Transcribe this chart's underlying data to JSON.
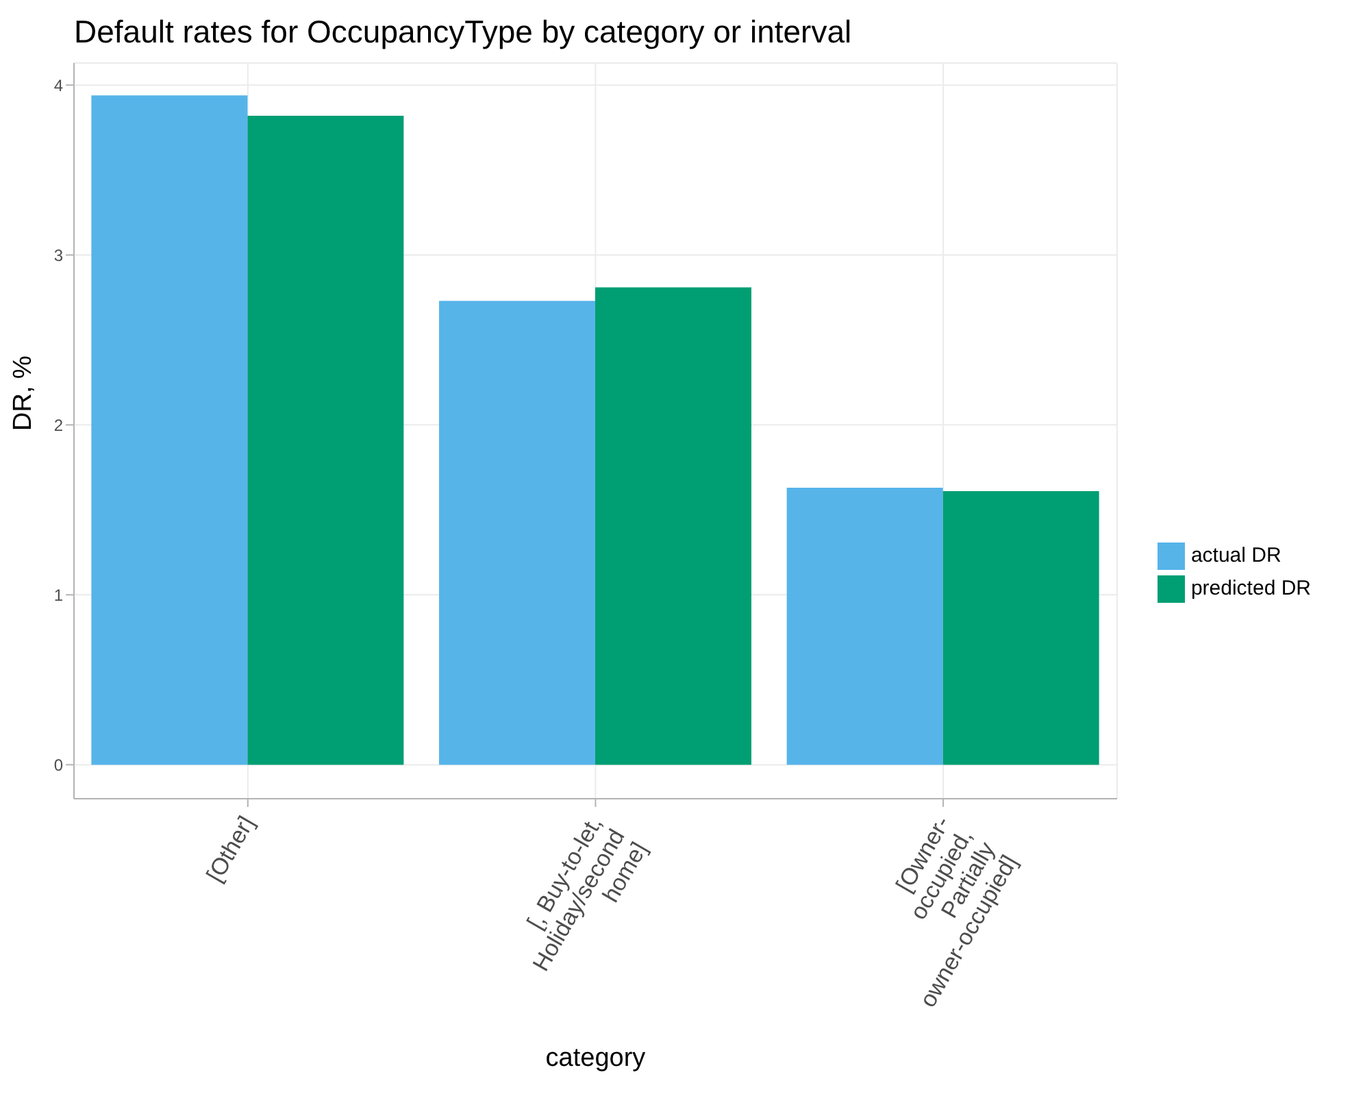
{
  "chart_data": {
    "type": "bar",
    "title": "Default rates for  OccupancyType by category or interval",
    "xlabel": "category",
    "ylabel": "DR, %",
    "categories": [
      "[Other]",
      "[, Buy-to-let, Holiday/second home]",
      "[Owner-occupied, Partially owner-occupied]"
    ],
    "series": [
      {
        "name": "actual DR",
        "color": "#56b4e9",
        "values": [
          3.94,
          2.73,
          1.63
        ]
      },
      {
        "name": "predicted DR",
        "color": "#009e73",
        "values": [
          3.82,
          2.81,
          1.61
        ]
      }
    ],
    "ylim": [
      -0.2,
      4.13
    ],
    "yticks": [
      0,
      1,
      2,
      3,
      4
    ],
    "grid": true,
    "legend": "right"
  }
}
